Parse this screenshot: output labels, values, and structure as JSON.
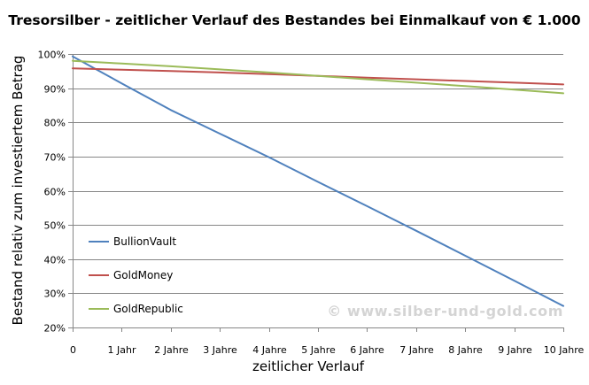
{
  "chart_data": {
    "type": "line",
    "title": "Tresorsilber - zeitlicher Verlauf des Bestandes bei Einmalkauf von € 1.000",
    "xlabel": "zeitlicher Verlauf",
    "ylabel": "Bestand relativ zum investiertem Betrag",
    "categories": [
      "0",
      "1 Jahr",
      "2 Jahre",
      "3 Jahre",
      "4 Jahre",
      "5 Jahre",
      "6 Jahre",
      "7 Jahre",
      "8 Jahre",
      "9 Jahre",
      "10 Jahre"
    ],
    "x": [
      0,
      1,
      2,
      3,
      4,
      5,
      6,
      7,
      8,
      9,
      10
    ],
    "y_ticks": [
      "20%",
      "30%",
      "40%",
      "50%",
      "60%",
      "70%",
      "80%",
      "90%",
      "100%"
    ],
    "ylim": [
      20,
      100
    ],
    "y_unit": "%",
    "grid": "horizontal",
    "legend_position": "left",
    "series": [
      {
        "name": "BullionVault",
        "color": "#4f81bd",
        "values": [
          99.3,
          91.4,
          83.6,
          76.7,
          69.8,
          62.6,
          55.5,
          48.3,
          41.0,
          33.7,
          26.3
        ]
      },
      {
        "name": "GoldMoney",
        "color": "#c0504d",
        "values": [
          95.8,
          95.4,
          95.0,
          94.6,
          94.1,
          93.6,
          93.1,
          92.6,
          92.1,
          91.6,
          91.1
        ]
      },
      {
        "name": "GoldRepublic",
        "color": "#9bbb59",
        "values": [
          98.0,
          97.2,
          96.4,
          95.5,
          94.6,
          93.6,
          92.6,
          91.6,
          90.6,
          89.6,
          88.5
        ]
      }
    ]
  },
  "watermark": "© www.silber-und-gold.com"
}
